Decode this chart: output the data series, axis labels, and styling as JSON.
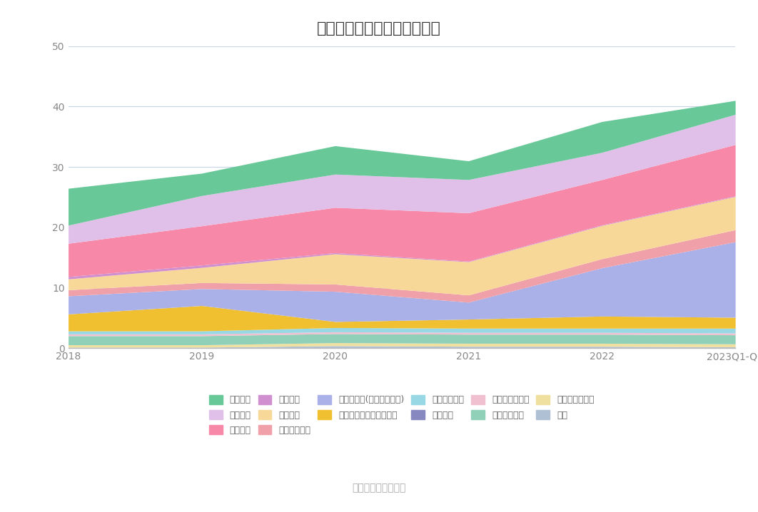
{
  "title": "历年主要负债堆积图（亿元）",
  "subtitle": "数据来源：恒生聚源",
  "x_labels": [
    "2018",
    "2019",
    "2020",
    "2021",
    "2022",
    "2023Q1-Q3"
  ],
  "ylim": [
    0,
    50
  ],
  "yticks": [
    0,
    10,
    20,
    30,
    40,
    50
  ],
  "series": [
    {
      "name": "其它",
      "color": "#b0c0d4",
      "values": [
        0.15,
        0.15,
        0.4,
        0.3,
        0.3,
        0.2
      ]
    },
    {
      "name": "递延所得税负债",
      "color": "#f0e0a0",
      "values": [
        0.4,
        0.4,
        0.5,
        0.5,
        0.5,
        0.5
      ]
    },
    {
      "name": "长期递延收益",
      "color": "#90d0b8",
      "values": [
        1.5,
        1.5,
        1.5,
        1.5,
        1.5,
        1.5
      ]
    },
    {
      "name": "长期应付款合计",
      "color": "#f0c0d0",
      "values": [
        0.3,
        0.3,
        0.3,
        0.3,
        0.3,
        0.3
      ]
    },
    {
      "name": "长期借款",
      "color": "#8888c0",
      "values": [
        0.0,
        0.0,
        0.0,
        0.0,
        0.0,
        0.0
      ]
    },
    {
      "name": "其他流动负债",
      "color": "#98d8e4",
      "values": [
        0.5,
        0.5,
        0.7,
        0.7,
        0.7,
        0.8
      ]
    },
    {
      "name": "一年内到期的非流动负债",
      "color": "#f0c030",
      "values": [
        2.8,
        4.2,
        1.0,
        1.5,
        2.0,
        1.8
      ]
    },
    {
      "name": "其他应付款(合利息和股利)",
      "color": "#aab0e8",
      "values": [
        3.0,
        2.8,
        5.0,
        2.8,
        8.0,
        12.5
      ]
    },
    {
      "name": "应付职工薪酬",
      "color": "#f0a0a8",
      "values": [
        1.0,
        1.0,
        1.2,
        1.2,
        1.5,
        2.0
      ]
    },
    {
      "name": "合同负债",
      "color": "#f8d898",
      "values": [
        1.8,
        2.5,
        5.0,
        5.5,
        5.5,
        5.5
      ]
    },
    {
      "name": "预收款项",
      "color": "#d090d0",
      "values": [
        0.4,
        0.4,
        0.2,
        0.1,
        0.1,
        0.1
      ]
    },
    {
      "name": "应付账款",
      "color": "#f888a8",
      "values": [
        5.5,
        6.5,
        7.5,
        8.0,
        7.5,
        8.5
      ]
    },
    {
      "name": "应付票据",
      "color": "#e0c0e8",
      "values": [
        3.0,
        5.0,
        5.5,
        5.5,
        4.5,
        5.0
      ]
    },
    {
      "name": "短期借款",
      "color": "#68c898",
      "values": [
        6.1,
        3.7,
        4.7,
        3.1,
        5.1,
        2.3
      ]
    }
  ],
  "background_color": "#ffffff",
  "grid_color": "#c8d4e8",
  "title_fontsize": 16,
  "tick_fontsize": 10,
  "legend_order": [
    "短期借款",
    "应付票据",
    "应付账款",
    "预收款项",
    "合同负债",
    "应付职工薪酬",
    "其他应付款(合利息和股利)",
    "一年内到期的非流动负债",
    "其他流动负债",
    "长期借款",
    "长期应付款合计",
    "长期递延收益",
    "递延所得税负债",
    "其它"
  ]
}
